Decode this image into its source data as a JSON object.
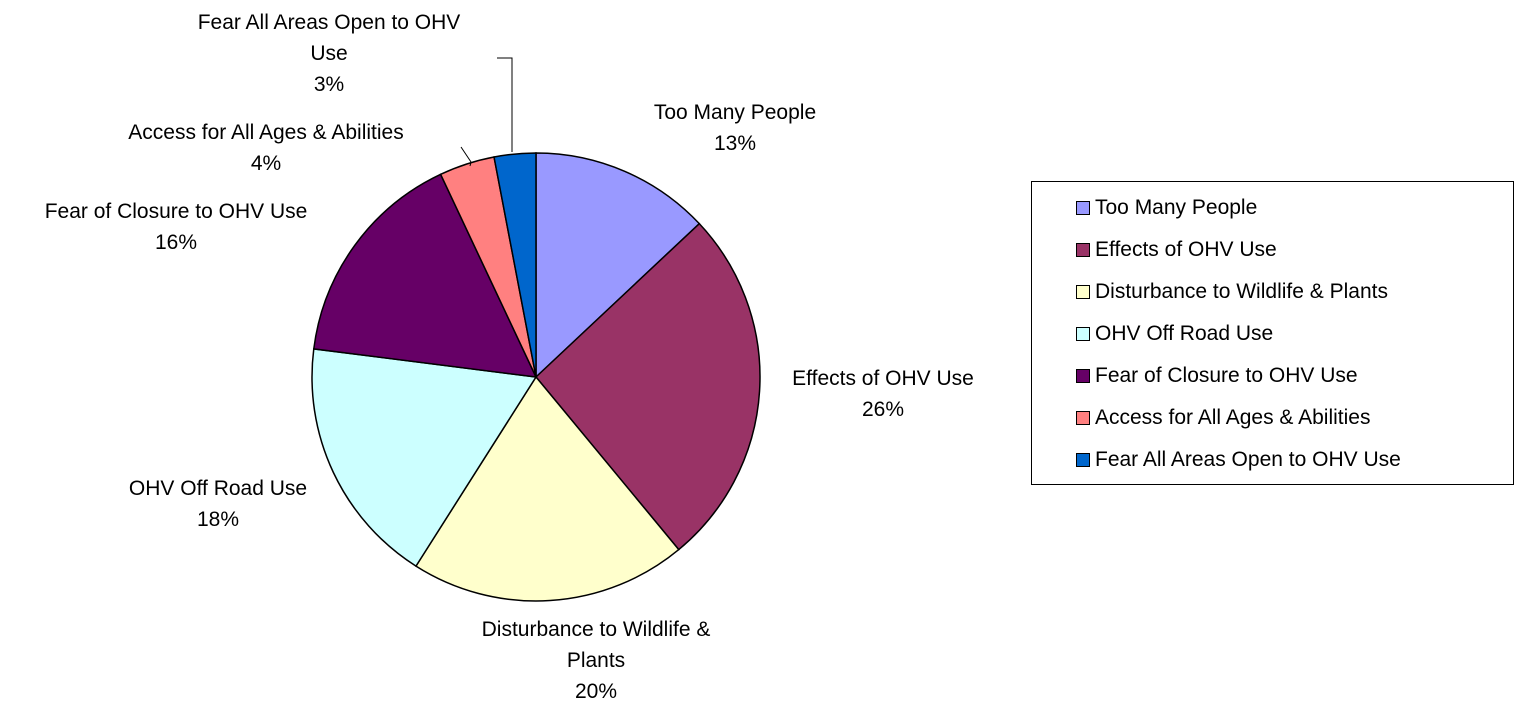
{
  "chart_data": {
    "type": "pie",
    "title": "",
    "legend_position": "right",
    "slices": [
      {
        "label": "Too Many People",
        "label_lines": [
          "Too Many People"
        ],
        "pct_label": "13%",
        "value": 13,
        "color": "#9999ff"
      },
      {
        "label": "Effects of OHV Use",
        "label_lines": [
          "Effects of OHV Use"
        ],
        "pct_label": "26%",
        "value": 26,
        "color": "#993366"
      },
      {
        "label": "Disturbance to Wildlife & Plants",
        "label_lines": [
          "Disturbance to Wildlife &",
          "Plants"
        ],
        "pct_label": "20%",
        "value": 20,
        "color": "#ffffcc"
      },
      {
        "label": "OHV Off Road Use",
        "label_lines": [
          "OHV Off Road Use"
        ],
        "pct_label": "18%",
        "value": 18,
        "color": "#ccffff"
      },
      {
        "label": "Fear of Closure to OHV Use",
        "label_lines": [
          "Fear of Closure to OHV Use"
        ],
        "pct_label": "16%",
        "value": 16,
        "color": "#660066"
      },
      {
        "label": "Access for All Ages & Abilities",
        "label_lines": [
          "Access for All Ages & Abilities"
        ],
        "pct_label": "4%",
        "value": 4,
        "color": "#ff8080"
      },
      {
        "label": "Fear All Areas Open to OHV Use",
        "label_lines": [
          "Fear All Areas Open to OHV",
          "Use"
        ],
        "pct_label": "3%",
        "value": 3,
        "color": "#0066cc"
      }
    ]
  }
}
